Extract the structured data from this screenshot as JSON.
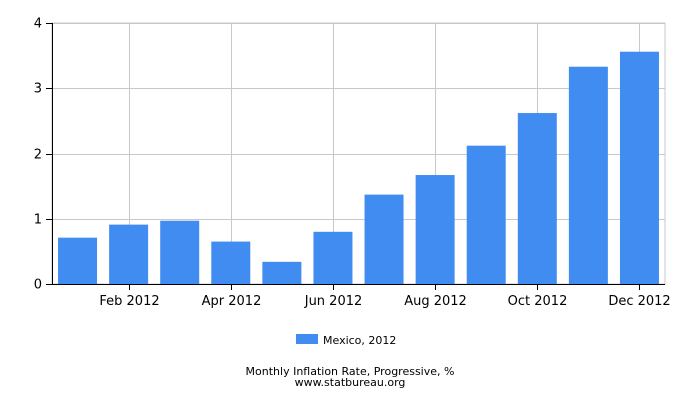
{
  "chart_data": {
    "type": "bar",
    "categories": [
      "Jan 2012",
      "Feb 2012",
      "Mar 2012",
      "Apr 2012",
      "May 2012",
      "Jun 2012",
      "Jul 2012",
      "Aug 2012",
      "Sep 2012",
      "Oct 2012",
      "Nov 2012",
      "Dec 2012"
    ],
    "x_tick_labels": [
      "",
      "Feb 2012",
      "",
      "Apr 2012",
      "",
      "Jun 2012",
      "",
      "Aug 2012",
      "",
      "Oct 2012",
      "",
      "Dec 2012"
    ],
    "series": [
      {
        "name": "Mexico, 2012",
        "color": "#418cf0",
        "values": [
          0.71,
          0.91,
          0.97,
          0.65,
          0.34,
          0.8,
          1.37,
          1.67,
          2.12,
          2.62,
          3.33,
          3.56
        ]
      }
    ],
    "y_ticks": [
      "0",
      "1",
      "2",
      "3",
      "4"
    ],
    "ylim": [
      0,
      4
    ],
    "grid": true,
    "legend_position": "bottom-center",
    "caption": "Monthly Inflation Rate, Progressive, %",
    "source": "www.statbureau.org"
  }
}
